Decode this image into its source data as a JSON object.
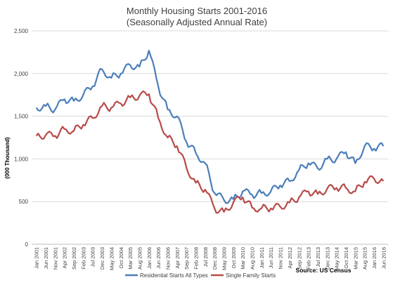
{
  "chart_data": {
    "type": "line",
    "title": "Monthly Housing Starts 2001-2016",
    "subtitle": "(Seasonally Adjusted Annual Rate)",
    "ylabel": "(000 Thousand)",
    "xlabel": "",
    "ylim": [
      0,
      2500
    ],
    "yticks": [
      "0",
      "500",
      "1,000",
      "1,500",
      "2,000",
      "2,500"
    ],
    "ytick_values": [
      0,
      500,
      1000,
      1500,
      2000,
      2500
    ],
    "grid": true,
    "legend_position": "bottom",
    "source": "Source: US Census",
    "x_tick_labels": [
      "Jan 2001",
      "Jun 2001",
      "Nov 2001",
      "Apr 2002",
      "Sep 2002",
      "Feb 2003",
      "Jul 2003",
      "Dec 2003",
      "May 2004",
      "Oct 2004",
      "Mar 2005",
      "Aug 2005",
      "Jan 2006",
      "Jun 2006",
      "Nov 2006",
      "Apr 2007",
      "Sep 2007",
      "Feb 2008",
      "Jul 2008",
      "Dec 2008",
      "May 2009",
      "Oct 2009",
      "Mar 2010",
      "Aug 2010",
      "Jan 2011",
      "Jun 2011",
      "Nov 2011",
      "Apr 2012",
      "Sep 2012",
      "Feb 2013",
      "Jul 2013",
      "Dec 2013",
      "May 2014",
      "Oct 2014",
      "Mar 2015",
      "Aug 2015",
      "Jan 2016",
      "Jun 2016"
    ],
    "series": [
      {
        "name": "Residential Starts All Types",
        "color": "#4a7eba",
        "anchors": [
          [
            "Jan 2001",
            1600
          ],
          [
            "Jun 2001",
            1620
          ],
          [
            "Nov 2001",
            1580
          ],
          [
            "Apr 2002",
            1700
          ],
          [
            "Sep 2002",
            1680
          ],
          [
            "Feb 2003",
            1750
          ],
          [
            "Jul 2003",
            1850
          ],
          [
            "Dec 2003",
            2050
          ],
          [
            "May 2004",
            1950
          ],
          [
            "Oct 2004",
            2000
          ],
          [
            "Mar 2005",
            2100
          ],
          [
            "Aug 2005",
            2080
          ],
          [
            "Jan 2006",
            2270
          ],
          [
            "Jun 2006",
            1850
          ],
          [
            "Nov 2006",
            1580
          ],
          [
            "Apr 2007",
            1500
          ],
          [
            "Sep 2007",
            1200
          ],
          [
            "Feb 2008",
            1070
          ],
          [
            "Jul 2008",
            950
          ],
          [
            "Dec 2008",
            600
          ],
          [
            "May 2009",
            520
          ],
          [
            "Oct 2009",
            530
          ],
          [
            "Mar 2010",
            620
          ],
          [
            "Aug 2010",
            580
          ],
          [
            "Jan 2011",
            600
          ],
          [
            "Jun 2011",
            620
          ],
          [
            "Nov 2011",
            690
          ],
          [
            "Apr 2012",
            740
          ],
          [
            "Sep 2012",
            870
          ],
          [
            "Feb 2013",
            950
          ],
          [
            "Jul 2013",
            890
          ],
          [
            "Dec 2013",
            1000
          ],
          [
            "May 2014",
            1000
          ],
          [
            "Oct 2014",
            1080
          ],
          [
            "Mar 2015",
            950
          ],
          [
            "Aug 2015",
            1150
          ],
          [
            "Jan 2016",
            1120
          ],
          [
            "Jun 2016",
            1150
          ]
        ]
      },
      {
        "name": "Single Family Starts",
        "color": "#b74a48",
        "anchors": [
          [
            "Jan 2001",
            1270
          ],
          [
            "Jun 2001",
            1280
          ],
          [
            "Nov 2001",
            1270
          ],
          [
            "Apr 2002",
            1350
          ],
          [
            "Sep 2002",
            1330
          ],
          [
            "Feb 2003",
            1400
          ],
          [
            "Jul 2003",
            1480
          ],
          [
            "Dec 2003",
            1620
          ],
          [
            "May 2004",
            1600
          ],
          [
            "Oct 2004",
            1650
          ],
          [
            "Mar 2005",
            1720
          ],
          [
            "Aug 2005",
            1740
          ],
          [
            "Jan 2006",
            1760
          ],
          [
            "Jun 2006",
            1480
          ],
          [
            "Nov 2006",
            1250
          ],
          [
            "Apr 2007",
            1150
          ],
          [
            "Sep 2007",
            900
          ],
          [
            "Feb 2008",
            720
          ],
          [
            "Jul 2008",
            640
          ],
          [
            "Dec 2008",
            420
          ],
          [
            "May 2009",
            380
          ],
          [
            "Oct 2009",
            490
          ],
          [
            "Mar 2010",
            550
          ],
          [
            "Aug 2010",
            430
          ],
          [
            "Jan 2011",
            420
          ],
          [
            "Jun 2011",
            420
          ],
          [
            "Nov 2011",
            440
          ],
          [
            "Apr 2012",
            490
          ],
          [
            "Sep 2012",
            550
          ],
          [
            "Feb 2013",
            620
          ],
          [
            "Jul 2013",
            590
          ],
          [
            "Dec 2013",
            650
          ],
          [
            "May 2014",
            660
          ],
          [
            "Oct 2014",
            660
          ],
          [
            "Mar 2015",
            620
          ],
          [
            "Aug 2015",
            730
          ],
          [
            "Jan 2016",
            770
          ],
          [
            "Jun 2016",
            740
          ]
        ]
      }
    ]
  }
}
